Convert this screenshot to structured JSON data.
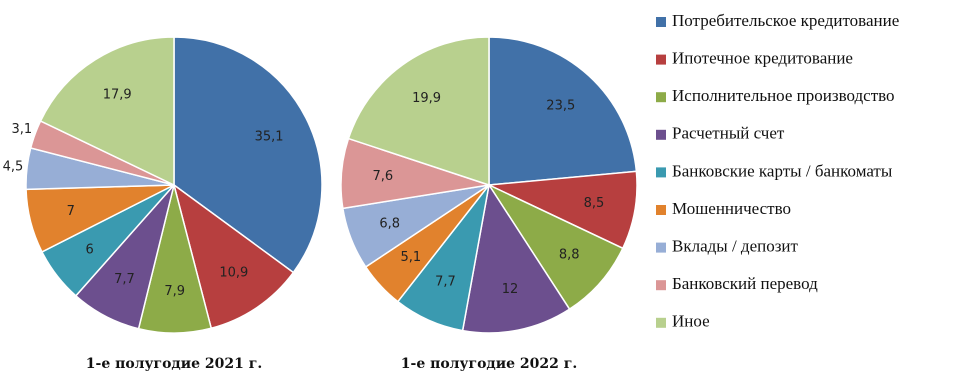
{
  "legend": {
    "categories": [
      "Потребительское кредитование",
      "Ипотечное кредитование",
      "Исполнительное производство",
      "Расчетный счет",
      "Банковские карты / банкоматы",
      "Мошенничество",
      "Вклады / депозит",
      "Банковский перевод",
      "Иное"
    ],
    "colors": [
      "#4171a8",
      "#b73f3f",
      "#8dab48",
      "#6c4f8e",
      "#3a9ab0",
      "#e1822d",
      "#97aed6",
      "#db9696",
      "#b8d08e"
    ]
  },
  "chart_data": [
    {
      "type": "pie",
      "title": "1-е полугодие 2021 г.",
      "values": [
        35.1,
        10.9,
        7.9,
        7.7,
        6,
        7,
        4.5,
        3.1,
        17.9
      ],
      "value_labels": [
        "35,1",
        "10,9",
        "7,9",
        "7,7",
        "6",
        "7",
        "4,5",
        "3,1",
        "17,9"
      ]
    },
    {
      "type": "pie",
      "title": "1-е полугодие 2022 г.",
      "values": [
        23.5,
        8.5,
        8.8,
        12,
        7.7,
        5.1,
        6.8,
        7.6,
        19.9
      ],
      "value_labels": [
        "23,5",
        "8,5",
        "8,8",
        "12",
        "7,7",
        "5,1",
        "6,8",
        "7,6",
        "19,9"
      ]
    }
  ]
}
